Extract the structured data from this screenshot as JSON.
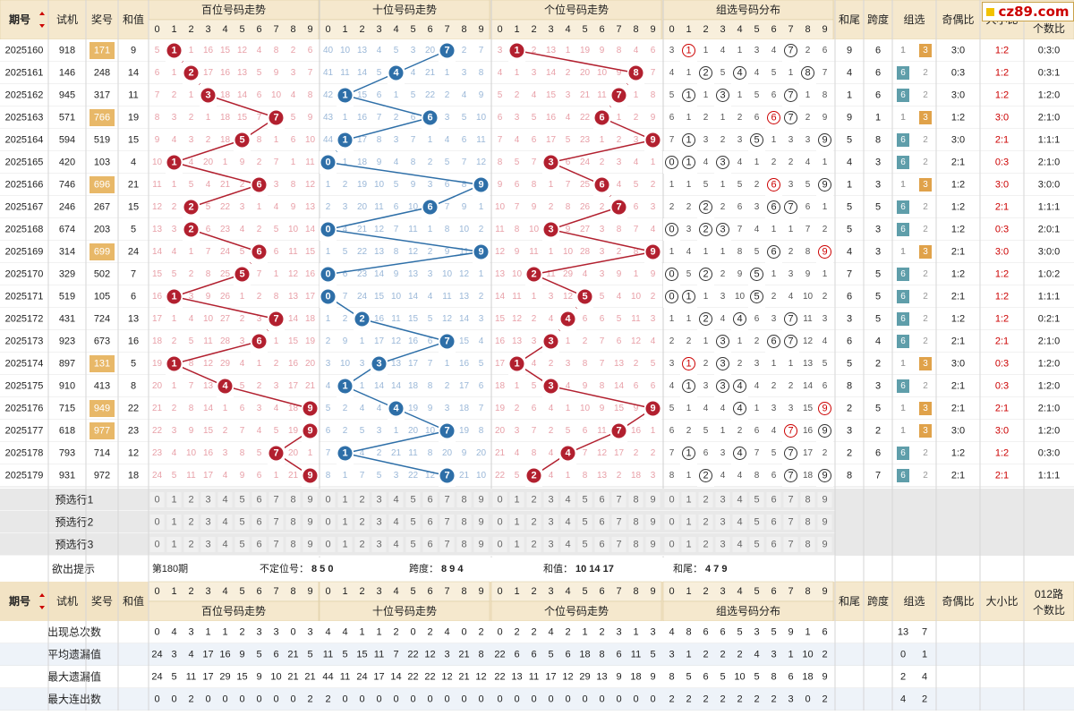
{
  "brand": {
    "text": "cz89.com",
    "mark_color": "#f2c200"
  },
  "headers": {
    "issue": "期号",
    "sort_icon": "up-down-triangle-icon",
    "trial": "试机",
    "prize": "奖号",
    "sum": "和值",
    "hundreds": "百位号码走势",
    "tens": "十位号码走势",
    "units": "个位号码走势",
    "group_dist": "组选号码分布",
    "sum_tail": "和尾",
    "span": "跨度",
    "group": "组选",
    "odd_even": "奇偶比",
    "big_small": "大小比",
    "route": "012路",
    "route2": "个数比",
    "digits": [
      "0",
      "1",
      "2",
      "3",
      "4",
      "5",
      "6",
      "7",
      "8",
      "9"
    ]
  },
  "rows": [
    {
      "issue": "2025160",
      "trial": "918",
      "prize": "171",
      "sum": "9",
      "sumTail": "9",
      "span": "6",
      "group": "3",
      "oddEven": "3:0",
      "bigSmall": "1:2",
      "route": "0:3:0",
      "h": [
        5,
        1,
        1,
        16,
        15,
        12,
        4,
        8,
        2,
        6
      ],
      "t": [
        40,
        10,
        13,
        4,
        5,
        3,
        20,
        7,
        2,
        7
      ],
      "u": [
        3,
        1,
        2,
        13,
        1,
        19,
        9,
        8,
        4,
        6
      ],
      "g": [
        3,
        1,
        1,
        4,
        1,
        3,
        4,
        7,
        2,
        6
      ]
    },
    {
      "issue": "2025161",
      "trial": "146",
      "prize": "248",
      "sum": "14",
      "sumTail": "4",
      "span": "6",
      "group": "6",
      "oddEven": "0:3",
      "bigSmall": "1:2",
      "route": "0:3:1",
      "h": [
        6,
        1,
        2,
        17,
        16,
        13,
        5,
        9,
        3,
        7
      ],
      "t": [
        41,
        11,
        14,
        5,
        4,
        4,
        21,
        1,
        3,
        8
      ],
      "u": [
        4,
        1,
        3,
        14,
        2,
        20,
        10,
        9,
        8,
        7
      ],
      "g": [
        4,
        1,
        2,
        5,
        4,
        4,
        5,
        1,
        8,
        7
      ]
    },
    {
      "issue": "2025162",
      "trial": "945",
      "prize": "317",
      "sum": "11",
      "sumTail": "1",
      "span": "6",
      "group": "6",
      "oddEven": "3:0",
      "bigSmall": "1:2",
      "route": "1:2:0",
      "h": [
        7,
        2,
        1,
        3,
        18,
        14,
        6,
        10,
        4,
        8
      ],
      "t": [
        42,
        1,
        15,
        6,
        1,
        5,
        22,
        2,
        4,
        9
      ],
      "u": [
        5,
        2,
        4,
        15,
        3,
        21,
        11,
        7,
        1,
        8
      ],
      "g": [
        5,
        1,
        1,
        3,
        1,
        5,
        6,
        7,
        1,
        8
      ]
    },
    {
      "issue": "2025163",
      "trial": "571",
      "prize": "766",
      "sum": "19",
      "sumTail": "9",
      "span": "1",
      "group": "3",
      "oddEven": "1:2",
      "bigSmall": "3:0",
      "route": "2:1:0",
      "h": [
        8,
        3,
        2,
        1,
        18,
        15,
        7,
        7,
        5,
        9
      ],
      "t": [
        43,
        1,
        16,
        7,
        2,
        6,
        6,
        3,
        5,
        10
      ],
      "u": [
        6,
        3,
        5,
        16,
        4,
        22,
        6,
        1,
        2,
        9
      ],
      "g": [
        6,
        1,
        2,
        1,
        2,
        6,
        6,
        7,
        2,
        9
      ]
    },
    {
      "issue": "2025164",
      "trial": "594",
      "prize": "519",
      "sum": "15",
      "sumTail": "5",
      "span": "8",
      "group": "6",
      "oddEven": "3:0",
      "bigSmall": "2:1",
      "route": "1:1:1",
      "h": [
        9,
        4,
        3,
        2,
        18,
        5,
        8,
        1,
        6,
        10
      ],
      "t": [
        44,
        1,
        17,
        8,
        3,
        7,
        1,
        4,
        6,
        11
      ],
      "u": [
        7,
        4,
        6,
        17,
        5,
        23,
        1,
        2,
        3,
        9
      ],
      "g": [
        7,
        1,
        3,
        2,
        3,
        5,
        1,
        3,
        3,
        9
      ]
    },
    {
      "issue": "2025165",
      "trial": "420",
      "prize": "103",
      "sum": "4",
      "sumTail": "4",
      "span": "3",
      "group": "6",
      "oddEven": "2:1",
      "bigSmall": "0:3",
      "route": "2:1:0",
      "h": [
        10,
        1,
        4,
        20,
        1,
        9,
        2,
        7,
        1,
        11
      ],
      "t": [
        0,
        1,
        18,
        9,
        4,
        8,
        2,
        5,
        7,
        12
      ],
      "u": [
        8,
        5,
        7,
        3,
        6,
        24,
        2,
        3,
        4,
        1
      ],
      "g": [
        0,
        1,
        4,
        3,
        4,
        1,
        2,
        2,
        4,
        1
      ]
    },
    {
      "issue": "2025166",
      "trial": "746",
      "prize": "696",
      "sum": "21",
      "sumTail": "1",
      "span": "3",
      "group": "3",
      "oddEven": "1:2",
      "bigSmall": "3:0",
      "route": "3:0:0",
      "h": [
        11,
        1,
        5,
        4,
        21,
        2,
        6,
        3,
        8,
        12
      ],
      "t": [
        1,
        2,
        19,
        10,
        5,
        9,
        3,
        6,
        8,
        9
      ],
      "u": [
        9,
        6,
        8,
        1,
        7,
        25,
        6,
        4,
        5,
        2
      ],
      "g": [
        1,
        1,
        5,
        1,
        5,
        2,
        6,
        3,
        5,
        9
      ]
    },
    {
      "issue": "2025167",
      "trial": "246",
      "prize": "267",
      "sum": "15",
      "sumTail": "5",
      "span": "5",
      "group": "6",
      "oddEven": "1:2",
      "bigSmall": "2:1",
      "route": "1:1:1",
      "h": [
        12,
        2,
        2,
        5,
        22,
        3,
        1,
        4,
        9,
        13
      ],
      "t": [
        2,
        3,
        20,
        11,
        6,
        10,
        6,
        7,
        9,
        1
      ],
      "u": [
        10,
        7,
        9,
        2,
        8,
        26,
        2,
        7,
        6,
        3
      ],
      "g": [
        2,
        2,
        2,
        2,
        6,
        3,
        6,
        7,
        6,
        1
      ]
    },
    {
      "issue": "2025168",
      "trial": "674",
      "prize": "203",
      "sum": "5",
      "sumTail": "5",
      "span": "3",
      "group": "6",
      "oddEven": "1:2",
      "bigSmall": "0:3",
      "route": "2:0:1",
      "h": [
        13,
        3,
        2,
        6,
        23,
        4,
        2,
        5,
        10,
        14
      ],
      "t": [
        0,
        4,
        21,
        12,
        7,
        11,
        1,
        8,
        10,
        2
      ],
      "u": [
        11,
        8,
        10,
        3,
        9,
        27,
        3,
        8,
        7,
        4
      ],
      "g": [
        0,
        3,
        2,
        3,
        7,
        4,
        1,
        1,
        7,
        2
      ]
    },
    {
      "issue": "2025169",
      "trial": "314",
      "prize": "699",
      "sum": "24",
      "sumTail": "4",
      "span": "3",
      "group": "3",
      "oddEven": "2:1",
      "bigSmall": "3:0",
      "route": "3:0:0",
      "h": [
        14,
        4,
        1,
        7,
        24,
        5,
        6,
        6,
        11,
        15
      ],
      "t": [
        1,
        5,
        22,
        13,
        8,
        12,
        2,
        9,
        11,
        9
      ],
      "u": [
        12,
        9,
        11,
        1,
        10,
        28,
        3,
        2,
        8,
        9
      ],
      "g": [
        1,
        4,
        1,
        1,
        8,
        5,
        6,
        2,
        8,
        9
      ]
    },
    {
      "issue": "2025170",
      "trial": "329",
      "prize": "502",
      "sum": "7",
      "sumTail": "7",
      "span": "5",
      "group": "6",
      "oddEven": "1:2",
      "bigSmall": "1:2",
      "route": "1:0:2",
      "h": [
        15,
        5,
        2,
        8,
        25,
        5,
        7,
        1,
        12,
        16
      ],
      "t": [
        0,
        6,
        23,
        14,
        9,
        13,
        3,
        10,
        12,
        1
      ],
      "u": [
        13,
        10,
        2,
        11,
        29,
        4,
        3,
        9,
        1,
        9
      ],
      "g": [
        0,
        5,
        2,
        2,
        9,
        5,
        1,
        3,
        9,
        1
      ]
    },
    {
      "issue": "2025171",
      "trial": "519",
      "prize": "105",
      "sum": "6",
      "sumTail": "6",
      "span": "5",
      "group": "6",
      "oddEven": "2:1",
      "bigSmall": "1:2",
      "route": "1:1:1",
      "h": [
        16,
        1,
        3,
        9,
        26,
        1,
        2,
        8,
        13,
        17
      ],
      "t": [
        0,
        7,
        24,
        15,
        10,
        14,
        4,
        11,
        13,
        2
      ],
      "u": [
        14,
        11,
        1,
        3,
        12,
        5,
        5,
        4,
        10,
        2
      ],
      "g": [
        0,
        1,
        1,
        3,
        10,
        5,
        2,
        4,
        10,
        2
      ]
    },
    {
      "issue": "2025172",
      "trial": "431",
      "prize": "724",
      "sum": "13",
      "sumTail": "3",
      "span": "5",
      "group": "6",
      "oddEven": "1:2",
      "bigSmall": "1:2",
      "route": "0:2:1",
      "h": [
        17,
        1,
        4,
        10,
        27,
        2,
        3,
        7,
        14,
        18
      ],
      "t": [
        1,
        2,
        8,
        16,
        11,
        15,
        5,
        12,
        14,
        3
      ],
      "u": [
        15,
        12,
        2,
        4,
        4,
        6,
        6,
        5,
        11,
        3
      ],
      "g": [
        1,
        1,
        2,
        4,
        4,
        6,
        3,
        7,
        11,
        3
      ]
    },
    {
      "issue": "2025173",
      "trial": "923",
      "prize": "673",
      "sum": "16",
      "sumTail": "6",
      "span": "4",
      "group": "6",
      "oddEven": "2:1",
      "bigSmall": "2:1",
      "route": "2:1:0",
      "h": [
        18,
        2,
        5,
        11,
        28,
        3,
        6,
        1,
        15,
        19
      ],
      "t": [
        2,
        9,
        1,
        17,
        12,
        16,
        6,
        7,
        15,
        4
      ],
      "u": [
        16,
        13,
        3,
        3,
        1,
        2,
        7,
        6,
        12,
        4
      ],
      "g": [
        2,
        2,
        1,
        3,
        1,
        2,
        6,
        7,
        12,
        4
      ]
    },
    {
      "issue": "2025174",
      "trial": "897",
      "prize": "131",
      "sum": "5",
      "sumTail": "5",
      "span": "2",
      "group": "3",
      "oddEven": "3:0",
      "bigSmall": "0:3",
      "route": "1:2:0",
      "h": [
        19,
        1,
        8,
        12,
        29,
        4,
        1,
        2,
        16,
        20
      ],
      "t": [
        3,
        10,
        3,
        3,
        13,
        17,
        7,
        1,
        16,
        5
      ],
      "u": [
        17,
        1,
        4,
        2,
        3,
        8,
        7,
        13,
        2,
        5
      ],
      "g": [
        3,
        1,
        2,
        3,
        2,
        3,
        1,
        1,
        13,
        5
      ]
    },
    {
      "issue": "2025175",
      "trial": "910",
      "prize": "413",
      "sum": "8",
      "sumTail": "8",
      "span": "3",
      "group": "6",
      "oddEven": "2:1",
      "bigSmall": "0:3",
      "route": "1:2:0",
      "h": [
        20,
        1,
        7,
        13,
        4,
        5,
        2,
        3,
        17,
        21
      ],
      "t": [
        4,
        1,
        1,
        14,
        14,
        18,
        8,
        2,
        17,
        6
      ],
      "u": [
        18,
        1,
        5,
        3,
        4,
        9,
        8,
        14,
        6,
        6
      ],
      "g": [
        4,
        1,
        3,
        3,
        4,
        4,
        2,
        2,
        14,
        6
      ]
    },
    {
      "issue": "2025176",
      "trial": "715",
      "prize": "949",
      "sum": "22",
      "sumTail": "2",
      "span": "5",
      "group": "3",
      "oddEven": "2:1",
      "bigSmall": "2:1",
      "route": "2:1:0",
      "h": [
        21,
        2,
        8,
        14,
        1,
        6,
        3,
        4,
        18,
        9
      ],
      "t": [
        5,
        2,
        4,
        4,
        15,
        19,
        9,
        3,
        18,
        7
      ],
      "u": [
        19,
        2,
        6,
        4,
        1,
        10,
        9,
        15,
        9,
        9
      ],
      "g": [
        5,
        1,
        4,
        4,
        5,
        1,
        3,
        3,
        15,
        9
      ]
    },
    {
      "issue": "2025177",
      "trial": "618",
      "prize": "977",
      "sum": "23",
      "sumTail": "3",
      "span": "2",
      "group": "3",
      "oddEven": "3:0",
      "bigSmall": "3:0",
      "route": "1:2:0",
      "h": [
        22,
        3,
        9,
        15,
        2,
        7,
        4,
        5,
        19,
        9
      ],
      "t": [
        6,
        2,
        5,
        3,
        1,
        20,
        10,
        7,
        19,
        8
      ],
      "u": [
        20,
        3,
        7,
        2,
        5,
        6,
        11,
        7,
        16,
        1
      ],
      "g": [
        6,
        2,
        5,
        1,
        2,
        6,
        4,
        7,
        16,
        9
      ]
    },
    {
      "issue": "2025178",
      "trial": "793",
      "prize": "714",
      "sum": "12",
      "sumTail": "2",
      "span": "6",
      "group": "6",
      "oddEven": "1:2",
      "bigSmall": "1:2",
      "route": "0:3:0",
      "h": [
        23,
        4,
        10,
        16,
        3,
        8,
        5,
        7,
        20,
        1
      ],
      "t": [
        7,
        1,
        4,
        2,
        21,
        11,
        8,
        20,
        9,
        20
      ],
      "u": [
        21,
        4,
        8,
        4,
        1,
        7,
        12,
        17,
        2,
        2
      ],
      "g": [
        7,
        1,
        6,
        3,
        4,
        7,
        5,
        1,
        17,
        2
      ]
    },
    {
      "issue": "2025179",
      "trial": "931",
      "prize": "972",
      "sum": "18",
      "sumTail": "8",
      "span": "7",
      "group": "6",
      "oddEven": "2:1",
      "bigSmall": "2:1",
      "route": "1:1:1",
      "h": [
        24,
        5,
        11,
        17,
        4,
        9,
        6,
        1,
        21,
        9
      ],
      "t": [
        8,
        1,
        7,
        5,
        3,
        22,
        12,
        7,
        21,
        10
      ],
      "u": [
        22,
        5,
        2,
        4,
        1,
        8,
        13,
        2,
        18,
        3
      ],
      "g": [
        8,
        1,
        2,
        4,
        4,
        8,
        6,
        7,
        18,
        9
      ]
    }
  ],
  "preselect": {
    "labels": [
      "预选行1",
      "预选行2",
      "预选行3"
    ]
  },
  "hint": {
    "label": "欲出提示",
    "period": "第180期",
    "dingwei_label": "不定位号：",
    "dingwei": "8 5 0",
    "span_label": "跨度：",
    "span": "8 9 4",
    "sum_label": "和值：",
    "sum": "10 14 17",
    "tail_label": "和尾：",
    "tail": "4 7 9"
  },
  "stats": [
    {
      "label": "出现总次数",
      "h": [
        0,
        4,
        3,
        1,
        1,
        2,
        3,
        3,
        0,
        3
      ],
      "t": [
        4,
        4,
        1,
        1,
        2,
        0,
        2,
        4,
        0,
        2
      ],
      "u": [
        0,
        2,
        2,
        4,
        2,
        1,
        2,
        3,
        1,
        3
      ],
      "g": [
        4,
        8,
        6,
        6,
        5,
        3,
        5,
        9,
        1,
        6
      ],
      "group": [
        "13",
        "7"
      ]
    },
    {
      "label": "平均遗漏值",
      "h": [
        24,
        3,
        4,
        17,
        16,
        9,
        5,
        6,
        21,
        5
      ],
      "t": [
        11,
        5,
        15,
        11,
        7,
        22,
        12,
        3,
        21,
        8
      ],
      "u": [
        22,
        6,
        6,
        5,
        6,
        18,
        8,
        6,
        11,
        5
      ],
      "g": [
        3,
        1,
        2,
        2,
        2,
        4,
        3,
        1,
        10,
        2
      ],
      "group": [
        "0",
        "1"
      ]
    },
    {
      "label": "最大遗漏值",
      "h": [
        24,
        5,
        11,
        17,
        29,
        15,
        9,
        10,
        21,
        21
      ],
      "t": [
        44,
        11,
        24,
        17,
        14,
        22,
        22,
        12,
        21,
        12
      ],
      "u": [
        22,
        13,
        11,
        17,
        12,
        29,
        13,
        9,
        18,
        9
      ],
      "g": [
        8,
        5,
        6,
        5,
        10,
        5,
        8,
        6,
        18,
        9
      ],
      "group": [
        "2",
        "4"
      ]
    },
    {
      "label": "最大连出数",
      "h": [
        0,
        0,
        2,
        0,
        0,
        0,
        0,
        0,
        0,
        2
      ],
      "t": [
        2,
        0,
        0,
        0,
        0,
        0,
        0,
        0,
        0,
        0
      ],
      "u": [
        0,
        0,
        0,
        0,
        0,
        0,
        0,
        0,
        0,
        0
      ],
      "g": [
        2,
        2,
        2,
        2,
        2,
        2,
        2,
        3,
        0,
        2
      ],
      "group": [
        "4",
        "2"
      ]
    }
  ],
  "colors": {
    "red_ball": "#b2202f",
    "blue_ball": "#2e6fa8",
    "group_three": "#e0a24a",
    "group_six": "#5f9eaa",
    "header_bg": "#f2e3c4",
    "stripe": "#eef3f9",
    "hot_text": "#c00"
  }
}
